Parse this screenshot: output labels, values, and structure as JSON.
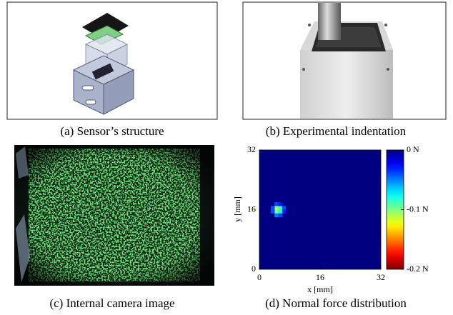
{
  "captions": [
    "(a) Sensor’s structure",
    "(b) Experimental indentation",
    "(c) Internal camera image",
    "(d) Normal force distribution"
  ],
  "chart_data": {
    "type": "heatmap",
    "xlabel": "x [mm]",
    "ylabel": "y [mm]",
    "xlim": [
      0,
      32
    ],
    "ylim": [
      0,
      32
    ],
    "xticks": [
      0,
      16,
      32
    ],
    "yticks": [
      0,
      16,
      32
    ],
    "x": [
      4,
      5,
      4,
      5,
      3,
      3,
      6,
      6,
      4,
      5,
      4,
      5
    ],
    "y": [
      16,
      16,
      15,
      15,
      16,
      15,
      16,
      15,
      17,
      17,
      14,
      14
    ],
    "values": [
      -0.11,
      -0.09,
      -0.1,
      -0.08,
      -0.04,
      -0.04,
      -0.04,
      -0.03,
      -0.04,
      -0.03,
      -0.05,
      -0.04
    ],
    "zlim": [
      0,
      -0.2
    ],
    "zticks": [
      {
        "value": 0,
        "label": "0 N"
      },
      {
        "value": -0.1,
        "label": "-0.1 N"
      },
      {
        "value": -0.2,
        "label": "-0.2 N"
      }
    ],
    "colormap": "jet"
  }
}
